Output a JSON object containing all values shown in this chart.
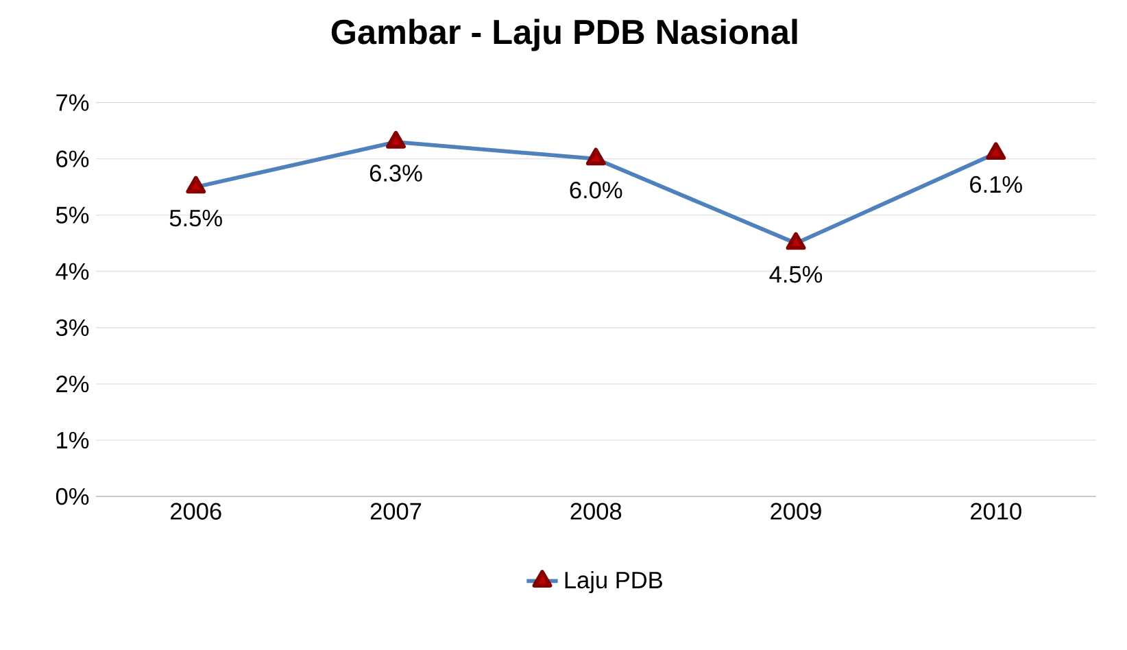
{
  "chart_data": {
    "type": "line",
    "title": "Gambar - Laju PDB Nasional",
    "categories": [
      "2006",
      "2007",
      "2008",
      "2009",
      "2010"
    ],
    "series": [
      {
        "name": "Laju PDB",
        "color": "#4f81bd",
        "values": [
          5.5,
          6.3,
          6.0,
          4.5,
          6.1
        ],
        "value_labels": [
          "5.5%",
          "6.3%",
          "6.0%",
          "4.5%",
          "6.1%"
        ]
      }
    ],
    "ylim": [
      0,
      7
    ],
    "yticks": [
      {
        "value": 0,
        "label": "0%"
      },
      {
        "value": 1,
        "label": "1%"
      },
      {
        "value": 2,
        "label": "2%"
      },
      {
        "value": 3,
        "label": "3%"
      },
      {
        "value": 4,
        "label": "4%"
      },
      {
        "value": 5,
        "label": "5%"
      },
      {
        "value": 6,
        "label": "6%"
      },
      {
        "value": 7,
        "label": "7%"
      }
    ],
    "grid": "y",
    "legend": "bottom",
    "marker": "triangle",
    "line_style": "solid"
  }
}
